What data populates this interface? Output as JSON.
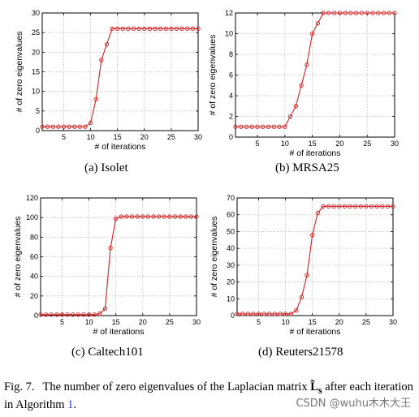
{
  "chart_data": [
    {
      "type": "line",
      "subcaption": "(a) Isolet",
      "xlabel": "# of iterations",
      "ylabel": "# of zero eigenvalues",
      "xlim": [
        1,
        30
      ],
      "ylim": [
        0,
        30
      ],
      "xticks": [
        5,
        10,
        15,
        20,
        25,
        30
      ],
      "yticks": [
        0,
        5,
        10,
        15,
        20,
        25,
        30
      ],
      "grid": true,
      "series": [
        {
          "color": "#d42020",
          "marker": "circle",
          "x": [
            1,
            2,
            3,
            4,
            5,
            6,
            7,
            8,
            9,
            10,
            11,
            12,
            13,
            14,
            15,
            16,
            17,
            18,
            19,
            20,
            21,
            22,
            23,
            24,
            25,
            26,
            27,
            28,
            29,
            30
          ],
          "y": [
            1,
            1,
            1,
            1,
            1,
            1,
            1,
            1,
            1,
            2,
            8,
            18,
            22,
            26,
            26,
            26,
            26,
            26,
            26,
            26,
            26,
            26,
            26,
            26,
            26,
            26,
            26,
            26,
            26,
            26
          ]
        }
      ]
    },
    {
      "type": "line",
      "subcaption": "(b) MRSA25",
      "xlabel": "# of iterations",
      "ylabel": "# of zero eigenvalues",
      "xlim": [
        1,
        30
      ],
      "ylim": [
        0,
        12
      ],
      "xticks": [
        5,
        10,
        15,
        20,
        25,
        30
      ],
      "yticks": [
        0,
        2,
        4,
        6,
        8,
        10,
        12
      ],
      "grid": true,
      "series": [
        {
          "color": "#d42020",
          "marker": "circle",
          "x": [
            1,
            2,
            3,
            4,
            5,
            6,
            7,
            8,
            9,
            10,
            11,
            12,
            13,
            14,
            15,
            16,
            17,
            18,
            19,
            20,
            21,
            22,
            23,
            24,
            25,
            26,
            27,
            28,
            29,
            30
          ],
          "y": [
            1,
            1,
            1,
            1,
            1,
            1,
            1,
            1,
            1,
            1,
            2,
            3,
            5,
            7,
            10,
            11,
            12,
            12,
            12,
            12,
            12,
            12,
            12,
            12,
            12,
            12,
            12,
            12,
            12,
            12
          ]
        }
      ]
    },
    {
      "type": "line",
      "subcaption": "(c) Caltech101",
      "xlabel": "# of iterations",
      "ylabel": "# of zero eigenvalues",
      "xlim": [
        1,
        30
      ],
      "ylim": [
        0,
        120
      ],
      "xticks": [
        5,
        10,
        15,
        20,
        25,
        30
      ],
      "yticks": [
        0,
        20,
        40,
        60,
        80,
        100,
        120
      ],
      "grid": true,
      "series": [
        {
          "color": "#d42020",
          "marker": "circle",
          "x": [
            1,
            2,
            3,
            4,
            5,
            6,
            7,
            8,
            9,
            10,
            11,
            12,
            13,
            14,
            15,
            16,
            17,
            18,
            19,
            20,
            21,
            22,
            23,
            24,
            25,
            26,
            27,
            28,
            29,
            30
          ],
          "y": [
            1,
            1,
            1,
            1,
            1,
            1,
            1,
            1,
            1,
            1,
            1,
            2,
            7,
            69,
            99,
            101,
            101,
            101,
            101,
            101,
            101,
            101,
            101,
            101,
            101,
            101,
            101,
            101,
            101,
            101
          ]
        }
      ]
    },
    {
      "type": "line",
      "subcaption": "(d) Reuters21578",
      "xlabel": "# of iterations",
      "ylabel": "# of zero eigenvalues",
      "xlim": [
        1,
        30
      ],
      "ylim": [
        0,
        70
      ],
      "xticks": [
        5,
        10,
        15,
        20,
        25,
        30
      ],
      "yticks": [
        0,
        10,
        20,
        30,
        40,
        50,
        60,
        70
      ],
      "grid": true,
      "series": [
        {
          "color": "#d42020",
          "marker": "circle",
          "x": [
            1,
            2,
            3,
            4,
            5,
            6,
            7,
            8,
            9,
            10,
            11,
            12,
            13,
            14,
            15,
            16,
            17,
            18,
            19,
            20,
            21,
            22,
            23,
            24,
            25,
            26,
            27,
            28,
            29,
            30
          ],
          "y": [
            1,
            1,
            1,
            1,
            1,
            1,
            1,
            1,
            1,
            1,
            1,
            3,
            11,
            24,
            48,
            61,
            65,
            65,
            65,
            65,
            65,
            65,
            65,
            65,
            65,
            65,
            65,
            65,
            65,
            65
          ]
        }
      ]
    }
  ],
  "caption": {
    "label": "Fig. 7.",
    "text_before": "The number of zero eigenvalues of the Laplacian matrix ",
    "symbol": "L̃",
    "symbol_sub": "s",
    "text_after": " after each iteration in Algorithm ",
    "algorithm_ref": "1",
    "period": "."
  },
  "watermark": "CSDN @wuhu木木大王"
}
